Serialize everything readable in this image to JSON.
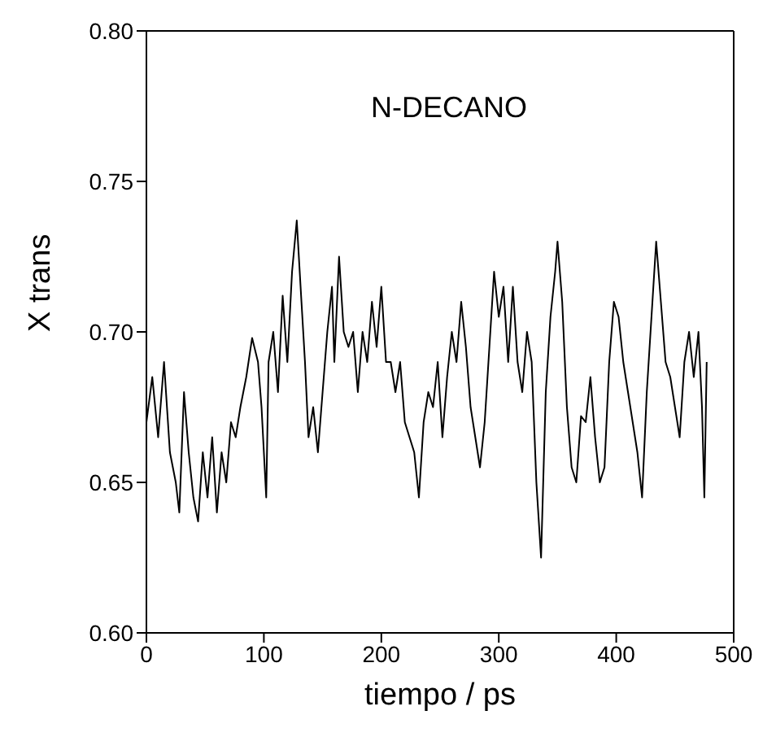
{
  "chart_data": {
    "type": "line",
    "xlabel": "tiempo / ps",
    "ylabel": "X trans",
    "annotations": [
      "N-DECANO"
    ],
    "xlim": [
      0,
      500
    ],
    "xticks": [
      0,
      100,
      200,
      300,
      400,
      500
    ],
    "ylim": [
      0.6,
      0.8
    ],
    "yticks": [
      {
        "value": 0.6,
        "label": "0.60"
      },
      {
        "value": 0.65,
        "label": "0.65"
      },
      {
        "value": 0.7,
        "label": "0.70"
      },
      {
        "value": 0.75,
        "label": "0.75"
      },
      {
        "value": 0.8,
        "label": "0.80"
      }
    ],
    "grid": false,
    "marker": "none",
    "line_style": "solid",
    "series": [
      {
        "color": "#000000",
        "x": [
          0,
          5,
          10,
          15,
          20,
          25,
          28,
          32,
          36,
          40,
          44,
          48,
          52,
          56,
          60,
          64,
          68,
          72,
          76,
          80,
          85,
          90,
          95,
          98,
          102,
          104,
          108,
          112,
          116,
          120,
          124,
          128,
          132,
          135,
          138,
          142,
          146,
          150,
          154,
          158,
          160,
          164,
          168,
          172,
          176,
          180,
          184,
          188,
          192,
          196,
          200,
          204,
          208,
          212,
          216,
          220,
          224,
          228,
          232,
          236,
          240,
          244,
          248,
          252,
          256,
          260,
          264,
          268,
          272,
          276,
          280,
          284,
          288,
          292,
          296,
          300,
          304,
          308,
          312,
          316,
          320,
          324,
          328,
          332,
          336,
          340,
          344,
          348,
          350,
          354,
          358,
          362,
          366,
          370,
          374,
          378,
          382,
          386,
          390,
          394,
          398,
          402,
          406,
          410,
          414,
          418,
          422,
          426,
          430,
          434,
          438,
          442,
          446,
          450,
          454,
          458,
          462,
          466,
          470,
          473,
          475,
          477
        ],
        "values": [
          0.67,
          0.685,
          0.665,
          0.69,
          0.66,
          0.65,
          0.64,
          0.68,
          0.66,
          0.645,
          0.637,
          0.66,
          0.645,
          0.665,
          0.64,
          0.66,
          0.65,
          0.67,
          0.665,
          0.675,
          0.685,
          0.698,
          0.69,
          0.675,
          0.645,
          0.69,
          0.7,
          0.68,
          0.712,
          0.69,
          0.72,
          0.737,
          0.71,
          0.69,
          0.665,
          0.675,
          0.66,
          0.68,
          0.7,
          0.715,
          0.69,
          0.725,
          0.7,
          0.695,
          0.7,
          0.68,
          0.7,
          0.69,
          0.71,
          0.695,
          0.715,
          0.69,
          0.69,
          0.68,
          0.69,
          0.67,
          0.665,
          0.66,
          0.645,
          0.67,
          0.68,
          0.675,
          0.69,
          0.665,
          0.685,
          0.7,
          0.69,
          0.71,
          0.695,
          0.675,
          0.665,
          0.655,
          0.67,
          0.695,
          0.72,
          0.705,
          0.715,
          0.69,
          0.715,
          0.69,
          0.68,
          0.7,
          0.69,
          0.65,
          0.625,
          0.68,
          0.705,
          0.72,
          0.73,
          0.71,
          0.675,
          0.655,
          0.65,
          0.672,
          0.67,
          0.685,
          0.665,
          0.65,
          0.655,
          0.69,
          0.71,
          0.705,
          0.69,
          0.68,
          0.67,
          0.66,
          0.645,
          0.68,
          0.705,
          0.73,
          0.71,
          0.69,
          0.685,
          0.675,
          0.665,
          0.69,
          0.7,
          0.685,
          0.7,
          0.675,
          0.645,
          0.69
        ]
      }
    ]
  }
}
